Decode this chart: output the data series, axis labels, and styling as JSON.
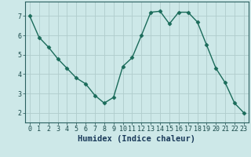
{
  "x": [
    0,
    1,
    2,
    3,
    4,
    5,
    6,
    7,
    8,
    9,
    10,
    11,
    12,
    13,
    14,
    15,
    16,
    17,
    18,
    19,
    20,
    21,
    22,
    23
  ],
  "y": [
    7.0,
    5.9,
    5.4,
    4.8,
    4.3,
    3.8,
    3.5,
    2.9,
    2.5,
    2.8,
    4.4,
    4.85,
    6.0,
    7.2,
    7.25,
    6.6,
    7.2,
    7.2,
    6.7,
    5.5,
    4.3,
    3.55,
    2.5,
    2.0
  ],
  "line_color": "#1a6b5a",
  "marker": "D",
  "marker_size": 2.5,
  "bg_color": "#cde8e8",
  "grid_color": "#b0cccc",
  "xlabel": "Humidex (Indice chaleur)",
  "ylim": [
    1.5,
    7.75
  ],
  "xlim": [
    -0.5,
    23.5
  ],
  "yticks": [
    2,
    3,
    4,
    5,
    6,
    7
  ],
  "xticks": [
    0,
    1,
    2,
    3,
    4,
    5,
    6,
    7,
    8,
    9,
    10,
    11,
    12,
    13,
    14,
    15,
    16,
    17,
    18,
    19,
    20,
    21,
    22,
    23
  ],
  "xlabel_fontsize": 7.5,
  "tick_fontsize": 6.0,
  "spine_color": "#2a6060",
  "xlabel_color": "#1a3a5a",
  "tick_color": "#1a4a4a"
}
